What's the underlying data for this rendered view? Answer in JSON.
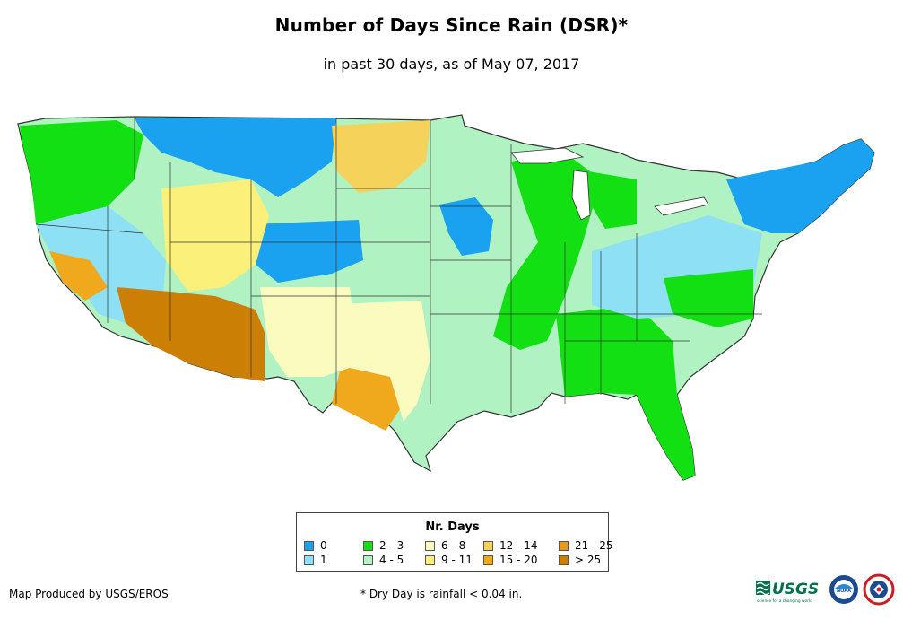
{
  "title": "Number of Days Since Rain (DSR)*",
  "subtitle": "in past 30 days, as of May 07, 2017",
  "legend": {
    "title": "Nr. Days",
    "items": [
      {
        "label": "0",
        "color": "#1aa1f0"
      },
      {
        "label": "1",
        "color": "#8ee0f5"
      },
      {
        "label": "2 - 3",
        "color": "#12e012"
      },
      {
        "label": "4 - 5",
        "color": "#b0f2c2"
      },
      {
        "label": "6 - 8",
        "color": "#fbfbc0"
      },
      {
        "label": "9 - 11",
        "color": "#faf07a"
      },
      {
        "label": "12 - 14",
        "color": "#f5d25a"
      },
      {
        "label": "15 - 20",
        "color": "#f0a81c"
      },
      {
        "label": "21 - 25",
        "color": "#e8991c"
      },
      {
        "label": "> 25",
        "color": "#cc7f05"
      }
    ]
  },
  "footer": {
    "credit": "Map Produced by USGS/EROS",
    "note": "* Dry Day is rainfall < 0.04 in."
  },
  "logos": {
    "usgs": "USGS",
    "usgs_tagline": "science for a changing world",
    "noaa": "NOAA"
  }
}
